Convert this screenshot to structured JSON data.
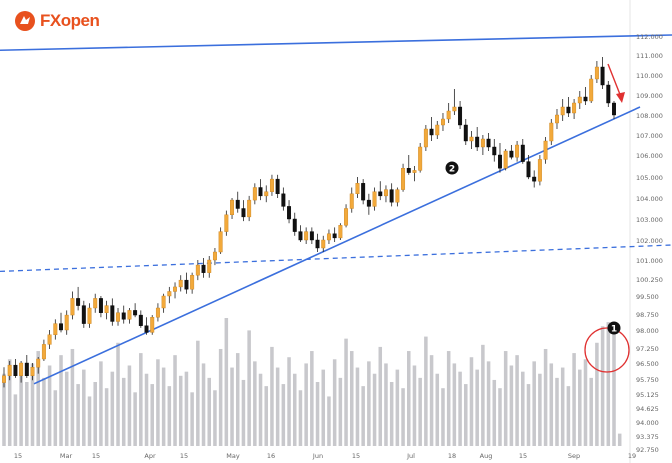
{
  "logo": {
    "text": "FXopen",
    "brand_color": "#e8511e"
  },
  "chart_data": {
    "type": "candlestick",
    "title": "",
    "xlabel": "",
    "ylabel": "",
    "ylim": [
      92.0,
      112.5
    ],
    "y_ticks": [
      "112.000",
      "111.000",
      "110.000",
      "109.000",
      "108.000",
      "107.000",
      "106.000",
      "105.000",
      "104.000",
      "103.000",
      "102.000",
      "101.000",
      "100.250",
      "99.500",
      "98.750",
      "98.000",
      "97.250",
      "96.500",
      "95.750",
      "95.125",
      "94.625",
      "94.000",
      "93.375",
      "92.750"
    ],
    "x_ticks": [
      "15",
      "Mar",
      "15",
      "Apr",
      "15",
      "May",
      "16",
      "Jun",
      "15",
      "Jul",
      "18",
      "Aug",
      "15",
      "Sep",
      "19"
    ],
    "colors": {
      "up": "#f2a93b",
      "down": "#111111",
      "volume": "#c8c8cc",
      "trendline": "#3b6fdd",
      "arrow": "#e03131",
      "circle": "#e03131"
    },
    "candles": [
      [
        95.6,
        96.3,
        95.4,
        95.9
      ],
      [
        95.9,
        96.6,
        95.7,
        96.4
      ],
      [
        96.4,
        96.7,
        95.8,
        95.9
      ],
      [
        95.9,
        96.6,
        95.6,
        96.5
      ],
      [
        96.5,
        96.9,
        95.8,
        95.9
      ],
      [
        95.9,
        96.5,
        95.7,
        96.3
      ],
      [
        96.3,
        96.8,
        96.0,
        96.7
      ],
      [
        96.7,
        97.6,
        96.6,
        97.4
      ],
      [
        97.4,
        98.0,
        97.2,
        97.8
      ],
      [
        97.8,
        98.5,
        97.6,
        98.3
      ],
      [
        98.3,
        98.8,
        97.9,
        98.0
      ],
      [
        98.0,
        98.9,
        97.8,
        98.7
      ],
      [
        98.7,
        99.7,
        98.5,
        99.4
      ],
      [
        99.4,
        99.9,
        98.9,
        99.1
      ],
      [
        99.1,
        99.3,
        98.1,
        98.3
      ],
      [
        98.3,
        99.2,
        98.1,
        99.0
      ],
      [
        99.0,
        99.6,
        98.8,
        99.4
      ],
      [
        99.4,
        99.5,
        98.6,
        98.8
      ],
      [
        98.8,
        99.3,
        98.5,
        99.1
      ],
      [
        99.1,
        99.4,
        98.2,
        98.4
      ],
      [
        98.4,
        99.0,
        98.2,
        98.8
      ],
      [
        98.8,
        99.1,
        98.3,
        98.5
      ],
      [
        98.5,
        99.0,
        98.3,
        98.9
      ],
      [
        98.9,
        99.2,
        98.6,
        98.7
      ],
      [
        98.7,
        98.9,
        98.1,
        98.2
      ],
      [
        98.2,
        98.6,
        97.8,
        97.9
      ],
      [
        97.9,
        98.7,
        97.8,
        98.6
      ],
      [
        98.6,
        99.2,
        98.4,
        99.0
      ],
      [
        99.0,
        99.6,
        98.8,
        99.5
      ],
      [
        99.5,
        99.9,
        99.2,
        99.7
      ],
      [
        99.7,
        100.1,
        99.4,
        99.9
      ],
      [
        99.9,
        100.4,
        99.7,
        100.2
      ],
      [
        100.2,
        100.5,
        99.6,
        99.8
      ],
      [
        99.8,
        100.5,
        99.6,
        100.4
      ],
      [
        100.4,
        101.0,
        100.2,
        100.8
      ],
      [
        100.8,
        101.1,
        100.3,
        100.5
      ],
      [
        100.5,
        101.2,
        100.3,
        101.0
      ],
      [
        101.0,
        101.6,
        100.8,
        101.4
      ],
      [
        101.4,
        102.6,
        101.3,
        102.4
      ],
      [
        102.4,
        103.4,
        102.2,
        103.2
      ],
      [
        103.2,
        104.0,
        103.0,
        103.9
      ],
      [
        103.9,
        104.3,
        103.3,
        103.5
      ],
      [
        103.5,
        103.9,
        102.9,
        103.1
      ],
      [
        103.1,
        104.1,
        102.9,
        103.9
      ],
      [
        103.9,
        104.7,
        103.7,
        104.5
      ],
      [
        104.5,
        104.9,
        103.9,
        104.1
      ],
      [
        104.1,
        104.6,
        103.8,
        104.3
      ],
      [
        104.3,
        105.1,
        104.1,
        104.9
      ],
      [
        104.9,
        105.1,
        104.0,
        104.2
      ],
      [
        104.2,
        104.5,
        103.4,
        103.6
      ],
      [
        103.6,
        103.9,
        102.8,
        103.0
      ],
      [
        103.0,
        103.3,
        102.2,
        102.4
      ],
      [
        102.4,
        102.7,
        101.9,
        102.0
      ],
      [
        102.0,
        102.6,
        101.8,
        102.4
      ],
      [
        102.4,
        102.6,
        101.8,
        102.0
      ],
      [
        102.0,
        102.3,
        101.4,
        101.6
      ],
      [
        101.6,
        102.2,
        101.4,
        102.0
      ],
      [
        102.0,
        102.5,
        101.8,
        102.3
      ],
      [
        102.3,
        102.6,
        101.9,
        102.1
      ],
      [
        102.1,
        102.8,
        102.0,
        102.7
      ],
      [
        102.7,
        103.7,
        102.6,
        103.5
      ],
      [
        103.5,
        104.5,
        103.3,
        104.2
      ],
      [
        104.2,
        105.0,
        104.0,
        104.7
      ],
      [
        104.7,
        104.9,
        103.7,
        103.9
      ],
      [
        103.9,
        104.2,
        103.2,
        103.6
      ],
      [
        103.6,
        104.5,
        103.4,
        104.3
      ],
      [
        104.3,
        104.8,
        103.9,
        104.1
      ],
      [
        104.1,
        104.6,
        103.8,
        104.4
      ],
      [
        104.4,
        104.7,
        103.6,
        103.8
      ],
      [
        103.8,
        104.5,
        103.6,
        104.4
      ],
      [
        104.4,
        105.6,
        104.3,
        105.4
      ],
      [
        105.4,
        106.0,
        105.1,
        105.2
      ],
      [
        105.2,
        105.5,
        104.8,
        105.3
      ],
      [
        105.3,
        106.6,
        105.2,
        106.4
      ],
      [
        106.4,
        107.5,
        106.2,
        107.3
      ],
      [
        107.3,
        107.9,
        106.7,
        107.0
      ],
      [
        107.0,
        107.7,
        106.8,
        107.5
      ],
      [
        107.5,
        108.1,
        107.2,
        107.8
      ],
      [
        107.8,
        108.6,
        107.6,
        108.2
      ],
      [
        108.2,
        109.3,
        108.0,
        108.4
      ],
      [
        108.4,
        108.7,
        107.3,
        107.5
      ],
      [
        107.5,
        107.8,
        106.5,
        106.7
      ],
      [
        106.7,
        107.2,
        106.3,
        106.9
      ],
      [
        106.9,
        107.4,
        106.2,
        106.4
      ],
      [
        106.4,
        107.0,
        106.0,
        106.8
      ],
      [
        106.8,
        107.1,
        106.2,
        106.4
      ],
      [
        106.4,
        106.8,
        105.7,
        106.0
      ],
      [
        106.0,
        106.6,
        105.2,
        105.4
      ],
      [
        105.4,
        106.3,
        105.3,
        106.2
      ],
      [
        106.2,
        106.5,
        105.8,
        105.9
      ],
      [
        105.9,
        106.7,
        105.7,
        106.5
      ],
      [
        106.5,
        106.8,
        105.6,
        105.7
      ],
      [
        105.7,
        106.0,
        104.9,
        105.0
      ],
      [
        105.0,
        105.3,
        104.5,
        104.8
      ],
      [
        104.8,
        106.0,
        104.6,
        105.8
      ],
      [
        105.8,
        106.9,
        105.6,
        106.7
      ],
      [
        106.7,
        107.8,
        106.5,
        107.6
      ],
      [
        107.6,
        108.3,
        107.3,
        108.0
      ],
      [
        108.0,
        108.8,
        107.7,
        108.4
      ],
      [
        108.4,
        108.9,
        107.9,
        108.1
      ],
      [
        108.1,
        108.8,
        107.8,
        108.6
      ],
      [
        108.6,
        109.2,
        108.3,
        108.9
      ],
      [
        108.9,
        109.4,
        108.5,
        108.7
      ],
      [
        108.7,
        110.0,
        108.6,
        109.8
      ],
      [
        109.8,
        110.7,
        109.6,
        110.4
      ],
      [
        110.4,
        110.9,
        109.3,
        109.5
      ],
      [
        109.5,
        109.7,
        108.4,
        108.6
      ],
      [
        108.6,
        108.7,
        107.8,
        108.0
      ]
    ],
    "volumes": [
      0.35,
      0.42,
      0.25,
      0.36,
      0.31,
      0.4,
      0.46,
      0.33,
      0.39,
      0.27,
      0.44,
      0.36,
      0.47,
      0.3,
      0.37,
      0.24,
      0.31,
      0.41,
      0.28,
      0.36,
      0.5,
      0.33,
      0.39,
      0.26,
      0.45,
      0.35,
      0.3,
      0.42,
      0.38,
      0.29,
      0.44,
      0.34,
      0.36,
      0.26,
      0.51,
      0.4,
      0.33,
      0.27,
      0.47,
      0.62,
      0.38,
      0.45,
      0.32,
      0.56,
      0.41,
      0.35,
      0.29,
      0.48,
      0.38,
      0.3,
      0.43,
      0.35,
      0.27,
      0.4,
      0.46,
      0.31,
      0.37,
      0.24,
      0.42,
      0.33,
      0.52,
      0.46,
      0.38,
      0.29,
      0.41,
      0.35,
      0.48,
      0.4,
      0.31,
      0.37,
      0.28,
      0.46,
      0.39,
      0.33,
      0.53,
      0.44,
      0.35,
      0.28,
      0.46,
      0.4,
      0.36,
      0.3,
      0.43,
      0.37,
      0.49,
      0.41,
      0.32,
      0.28,
      0.46,
      0.39,
      0.44,
      0.36,
      0.3,
      0.41,
      0.35,
      0.47,
      0.4,
      0.33,
      0.38,
      0.29,
      0.45,
      0.37,
      0.42,
      0.33,
      0.5,
      0.58,
      0.6,
      0.56,
      0.06
    ],
    "annotations": [
      {
        "label": "1",
        "desc": "volume circle"
      },
      {
        "label": "2",
        "desc": "rising trendline"
      }
    ]
  }
}
